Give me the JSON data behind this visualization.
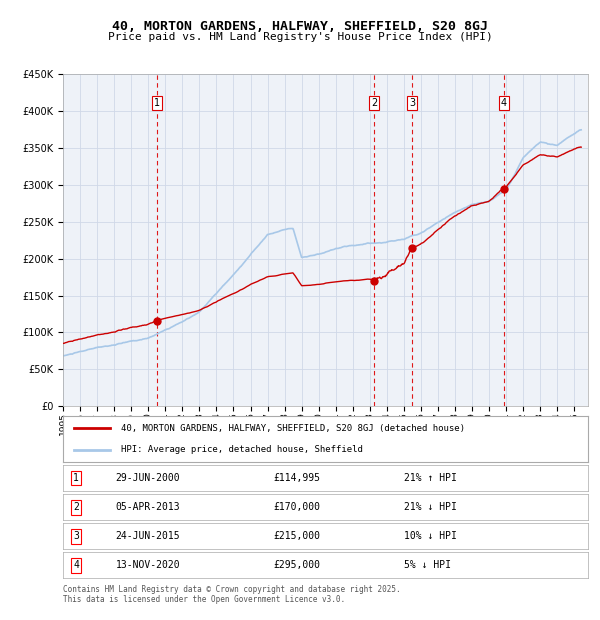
{
  "title": "40, MORTON GARDENS, HALFWAY, SHEFFIELD, S20 8GJ",
  "subtitle": "Price paid vs. HM Land Registry's House Price Index (HPI)",
  "ylim": [
    0,
    450000
  ],
  "yticks": [
    0,
    50000,
    100000,
    150000,
    200000,
    250000,
    300000,
    350000,
    400000,
    450000
  ],
  "hpi_color": "#a8c8e8",
  "price_color": "#cc0000",
  "marker_color": "#cc0000",
  "vline_color": "#dd0000",
  "grid_color": "#d0d8e8",
  "background_color": "#eef2f8",
  "transactions": [
    {
      "num": 1,
      "date": "29-JUN-2000",
      "price": 114995,
      "pct": "21%",
      "dir": "↑",
      "x": 2000.49
    },
    {
      "num": 2,
      "date": "05-APR-2013",
      "price": 170000,
      "pct": "21%",
      "dir": "↓",
      "x": 2013.26
    },
    {
      "num": 3,
      "date": "24-JUN-2015",
      "price": 215000,
      "pct": "10%",
      "dir": "↓",
      "x": 2015.48
    },
    {
      "num": 4,
      "date": "13-NOV-2020",
      "price": 295000,
      "pct": "5%",
      "dir": "↓",
      "x": 2020.87
    }
  ],
  "hpi_key_x": [
    1995,
    1997,
    2000,
    2003,
    2005,
    2007,
    2008.5,
    2009,
    2010,
    2011,
    2012,
    2013,
    2014,
    2015,
    2016,
    2017,
    2018,
    2019,
    2020,
    2021,
    2022,
    2023,
    2024,
    2025.3
  ],
  "hpi_key_y": [
    68000,
    78000,
    90000,
    125000,
    175000,
    230000,
    240000,
    200000,
    205000,
    210000,
    215000,
    218000,
    220000,
    225000,
    235000,
    250000,
    265000,
    275000,
    280000,
    295000,
    340000,
    360000,
    355000,
    375000
  ],
  "legend_label1": "40, MORTON GARDENS, HALFWAY, SHEFFIELD, S20 8GJ (detached house)",
  "legend_label2": "HPI: Average price, detached house, Sheffield",
  "footnote1": "Contains HM Land Registry data © Crown copyright and database right 2025.",
  "footnote2": "This data is licensed under the Open Government Licence v3.0."
}
